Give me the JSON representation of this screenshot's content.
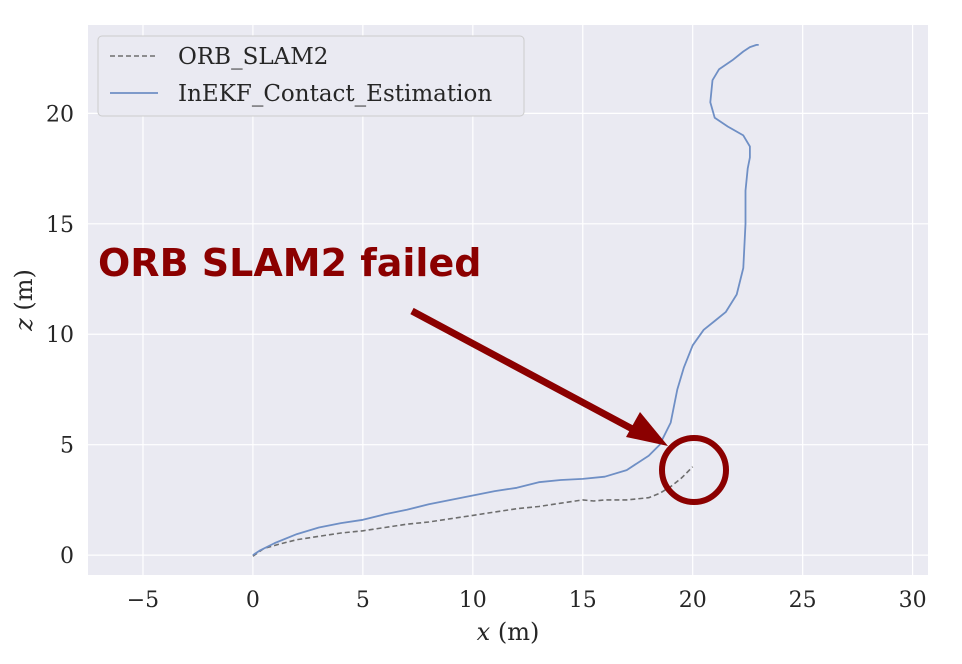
{
  "chart_data": {
    "type": "line",
    "xlabel_var": "x",
    "xlabel_unit": " (m)",
    "ylabel_var": "z",
    "ylabel_unit": " (m)",
    "xlim": [
      -7.5,
      30.7
    ],
    "ylim": [
      -0.9,
      24.0
    ],
    "xticks": [
      -5,
      0,
      5,
      10,
      15,
      20,
      25,
      30
    ],
    "yticks": [
      0,
      5,
      10,
      15,
      20
    ],
    "xtick_labels": [
      "−5",
      "0",
      "5",
      "10",
      "15",
      "20",
      "25",
      "30"
    ],
    "ytick_labels": [
      "0",
      "5",
      "10",
      "15",
      "20"
    ],
    "grid": true,
    "legend_position": "top-left",
    "colors": {
      "background": "#eaeaf2",
      "grid": "#ffffff",
      "orb": "#6e6e6e",
      "inekf": "#6f8fc5",
      "annotation": "#8b0000"
    },
    "series": [
      {
        "name": "ORB_SLAM2",
        "style": "dashed",
        "x": [
          0,
          0.5,
          1.2,
          2,
          3,
          4,
          5,
          6,
          7,
          8,
          9,
          10,
          11,
          12,
          13,
          14,
          15,
          15.5,
          16,
          17,
          18,
          18.5,
          19,
          19.5,
          20
        ],
        "y": [
          -0.05,
          0.3,
          0.5,
          0.7,
          0.85,
          1.0,
          1.1,
          1.25,
          1.4,
          1.5,
          1.65,
          1.8,
          1.95,
          2.1,
          2.2,
          2.35,
          2.5,
          2.45,
          2.5,
          2.5,
          2.6,
          2.8,
          3.1,
          3.5,
          4.0
        ]
      },
      {
        "name": "InEKF_Contact_Estimation",
        "style": "solid",
        "x": [
          0,
          0.3,
          1,
          2,
          3,
          4,
          5,
          6,
          7,
          8,
          9,
          10,
          11,
          12,
          13,
          14,
          15,
          16,
          17,
          18,
          18.5,
          19,
          19.3,
          19.6,
          20,
          20.5,
          21,
          21.5,
          22,
          22.3,
          22.4,
          22.4,
          22.5,
          22.6,
          22.6,
          22.3,
          21.6,
          21,
          20.8,
          20.9,
          21.2,
          21.8,
          22.3,
          22.6,
          22.9,
          23.0
        ],
        "y": [
          0,
          0.2,
          0.55,
          0.95,
          1.25,
          1.45,
          1.6,
          1.85,
          2.05,
          2.3,
          2.5,
          2.7,
          2.9,
          3.05,
          3.3,
          3.4,
          3.45,
          3.55,
          3.85,
          4.5,
          5.0,
          6.0,
          7.5,
          8.5,
          9.5,
          10.2,
          10.6,
          11.0,
          11.8,
          13.0,
          15.0,
          16.5,
          17.5,
          18.0,
          18.5,
          19.0,
          19.4,
          19.8,
          20.5,
          21.5,
          22.0,
          22.4,
          22.8,
          23.0,
          23.1,
          23.1
        ]
      }
    ],
    "annotations": [
      {
        "text": "ORB SLAM2 failed"
      }
    ]
  }
}
